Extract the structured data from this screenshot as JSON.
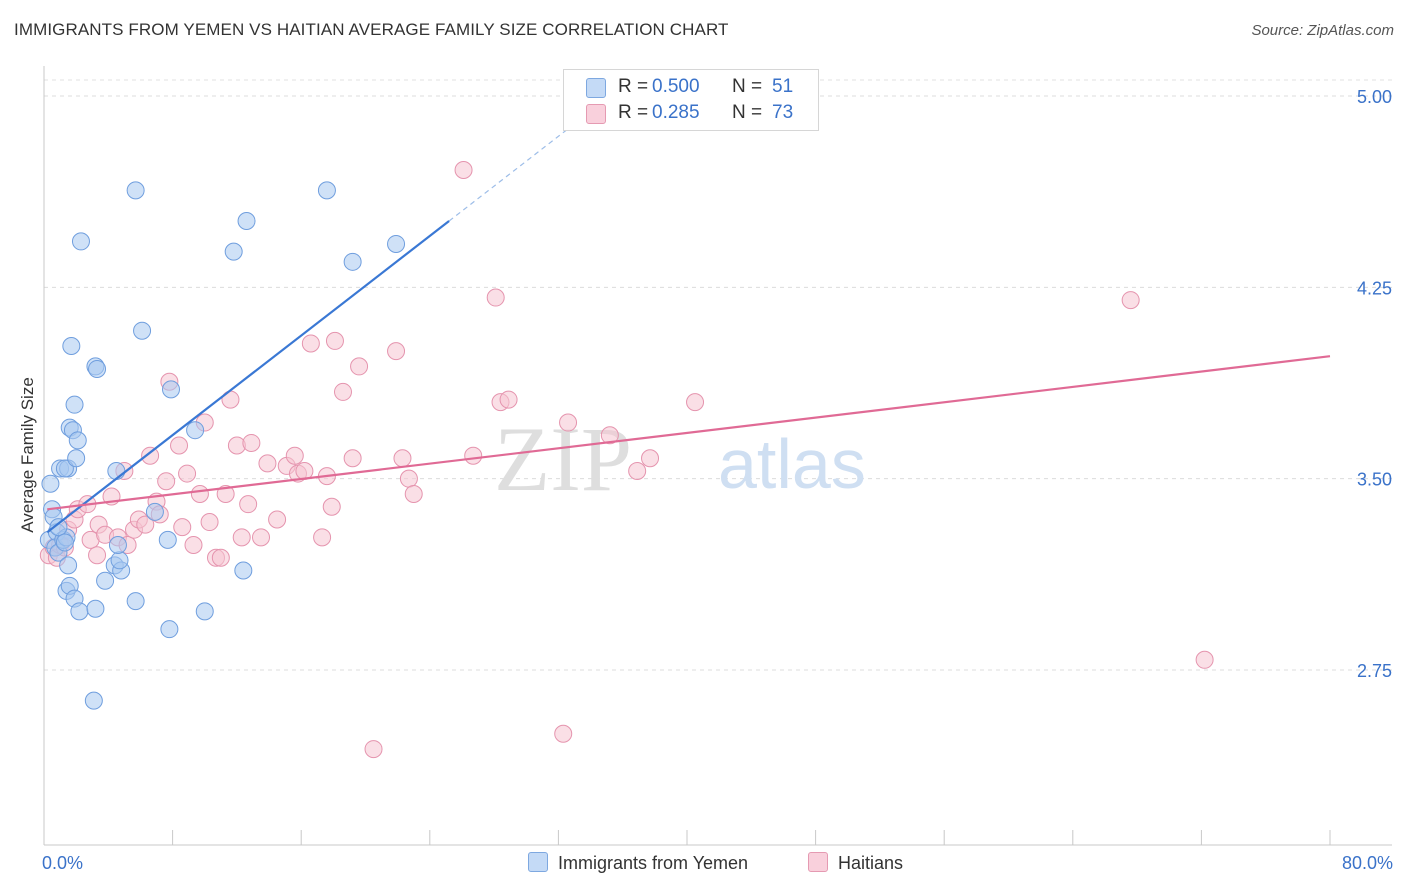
{
  "header": {
    "title": "IMMIGRANTS FROM YEMEN VS HAITIAN AVERAGE FAMILY SIZE CORRELATION CHART",
    "source": "Source: ZipAtlas.com"
  },
  "watermark": {
    "zip": "ZIP",
    "atlas": "atlas"
  },
  "legend": {
    "rows": [
      {
        "r_label": "R =",
        "r_value": "0.500",
        "n_label": "N =",
        "n_value": "51",
        "color": "#a8c8f0"
      },
      {
        "r_label": "R =",
        "r_value": "0.285",
        "n_label": "N =",
        "n_value": "73",
        "color": "#f5b8c8"
      }
    ]
  },
  "bottom_legend": {
    "items": [
      {
        "label": "Immigrants from Yemen",
        "color": "#a8c8f0"
      },
      {
        "label": "Haitians",
        "color": "#f5b8c8"
      }
    ]
  },
  "colors": {
    "blue_fill": "#a8c8f0",
    "blue_stroke": "#6f9ede",
    "blue_line": "#3a78d4",
    "pink_fill": "#f5c4d2",
    "pink_stroke": "#e594ae",
    "pink_line": "#e06a95",
    "tick_text": "#3a72c9"
  },
  "chart_data": {
    "type": "scatter",
    "title": "IMMIGRANTS FROM YEMEN VS HAITIAN AVERAGE FAMILY SIZE CORRELATION CHART",
    "xlabel": "",
    "ylabel": "Average Family Size",
    "xlim": [
      0,
      80
    ],
    "ylim": [
      2.0,
      5.1
    ],
    "x_tick_labels": [
      "0.0%",
      "80.0%"
    ],
    "y_ticks": [
      2.75,
      3.5,
      4.25,
      5.0
    ],
    "y_tick_labels": [
      "2.75",
      "3.50",
      "4.25",
      "5.00"
    ],
    "grid": true,
    "legend_position": "top-center",
    "series": [
      {
        "name": "Immigrants from Yemen",
        "color": "#a8c8f0",
        "trend": {
          "x": [
            0.2,
            25.2
          ],
          "y": [
            3.29,
            4.51
          ],
          "extended_to": [
            33.8,
            4.93
          ]
        },
        "points": [
          [
            0.4,
            3.48
          ],
          [
            0.5,
            3.38
          ],
          [
            0.6,
            3.35
          ],
          [
            0.3,
            3.26
          ],
          [
            0.8,
            3.29
          ],
          [
            0.7,
            3.23
          ],
          [
            0.9,
            3.21
          ],
          [
            1.2,
            3.26
          ],
          [
            1.4,
            3.27
          ],
          [
            1.0,
            3.54
          ],
          [
            1.5,
            3.54
          ],
          [
            1.3,
            3.54
          ],
          [
            1.6,
            3.7
          ],
          [
            1.8,
            3.69
          ],
          [
            2.1,
            3.65
          ],
          [
            2.0,
            3.58
          ],
          [
            1.9,
            3.79
          ],
          [
            1.7,
            4.02
          ],
          [
            2.3,
            4.43
          ],
          [
            1.5,
            3.16
          ],
          [
            1.4,
            3.06
          ],
          [
            1.6,
            3.08
          ],
          [
            1.9,
            3.03
          ],
          [
            2.2,
            2.98
          ],
          [
            3.2,
            2.99
          ],
          [
            3.1,
            2.63
          ],
          [
            3.8,
            3.1
          ],
          [
            4.4,
            3.16
          ],
          [
            4.8,
            3.14
          ],
          [
            4.7,
            3.18
          ],
          [
            4.6,
            3.24
          ],
          [
            3.2,
            3.94
          ],
          [
            3.3,
            3.93
          ],
          [
            5.7,
            3.02
          ],
          [
            6.1,
            4.08
          ],
          [
            6.9,
            3.37
          ],
          [
            7.7,
            3.26
          ],
          [
            7.8,
            2.91
          ],
          [
            7.9,
            3.85
          ],
          [
            9.4,
            3.69
          ],
          [
            10.0,
            2.98
          ],
          [
            11.8,
            4.39
          ],
          [
            12.6,
            4.51
          ],
          [
            12.4,
            3.14
          ],
          [
            4.5,
            3.53
          ],
          [
            5.7,
            4.63
          ],
          [
            17.6,
            4.63
          ],
          [
            19.2,
            4.35
          ],
          [
            21.9,
            4.42
          ],
          [
            0.9,
            3.31
          ],
          [
            1.3,
            3.25
          ]
        ]
      },
      {
        "name": "Haitians",
        "color": "#f5b8c8",
        "trend": {
          "x": [
            0.2,
            80.0
          ],
          "y": [
            3.38,
            3.98
          ]
        },
        "points": [
          [
            0.3,
            3.2
          ],
          [
            0.6,
            3.23
          ],
          [
            0.8,
            3.19
          ],
          [
            1.0,
            3.24
          ],
          [
            1.3,
            3.23
          ],
          [
            1.5,
            3.3
          ],
          [
            1.9,
            3.34
          ],
          [
            2.1,
            3.38
          ],
          [
            2.7,
            3.4
          ],
          [
            2.9,
            3.26
          ],
          [
            3.3,
            3.2
          ],
          [
            3.4,
            3.32
          ],
          [
            3.8,
            3.28
          ],
          [
            4.2,
            3.43
          ],
          [
            4.6,
            3.27
          ],
          [
            5.0,
            3.53
          ],
          [
            5.2,
            3.24
          ],
          [
            5.6,
            3.3
          ],
          [
            5.9,
            3.34
          ],
          [
            6.3,
            3.32
          ],
          [
            6.6,
            3.59
          ],
          [
            7.0,
            3.41
          ],
          [
            7.2,
            3.36
          ],
          [
            7.6,
            3.49
          ],
          [
            7.8,
            3.88
          ],
          [
            8.4,
            3.63
          ],
          [
            8.6,
            3.31
          ],
          [
            8.9,
            3.52
          ],
          [
            9.3,
            3.24
          ],
          [
            9.7,
            3.44
          ],
          [
            10.0,
            3.72
          ],
          [
            10.3,
            3.33
          ],
          [
            10.7,
            3.19
          ],
          [
            11.0,
            3.19
          ],
          [
            11.3,
            3.44
          ],
          [
            11.6,
            3.81
          ],
          [
            12.0,
            3.63
          ],
          [
            12.3,
            3.27
          ],
          [
            12.7,
            3.4
          ],
          [
            12.9,
            3.64
          ],
          [
            13.5,
            3.27
          ],
          [
            13.9,
            3.56
          ],
          [
            14.5,
            3.34
          ],
          [
            15.1,
            3.55
          ],
          [
            15.6,
            3.59
          ],
          [
            15.8,
            3.52
          ],
          [
            16.2,
            3.53
          ],
          [
            16.6,
            4.03
          ],
          [
            17.3,
            3.27
          ],
          [
            17.6,
            3.51
          ],
          [
            17.9,
            3.39
          ],
          [
            18.1,
            4.04
          ],
          [
            18.6,
            3.84
          ],
          [
            19.2,
            3.58
          ],
          [
            19.6,
            3.94
          ],
          [
            21.9,
            4.0
          ],
          [
            22.3,
            3.58
          ],
          [
            22.7,
            3.5
          ],
          [
            23.0,
            3.44
          ],
          [
            26.1,
            4.71
          ],
          [
            26.7,
            3.59
          ],
          [
            28.1,
            4.21
          ],
          [
            28.4,
            3.8
          ],
          [
            28.9,
            3.81
          ],
          [
            32.6,
            3.72
          ],
          [
            35.2,
            3.67
          ],
          [
            36.9,
            3.53
          ],
          [
            37.7,
            3.58
          ],
          [
            40.5,
            3.8
          ],
          [
            20.5,
            2.44
          ],
          [
            32.3,
            2.5
          ],
          [
            67.6,
            4.2
          ],
          [
            72.2,
            2.79
          ]
        ]
      }
    ]
  }
}
